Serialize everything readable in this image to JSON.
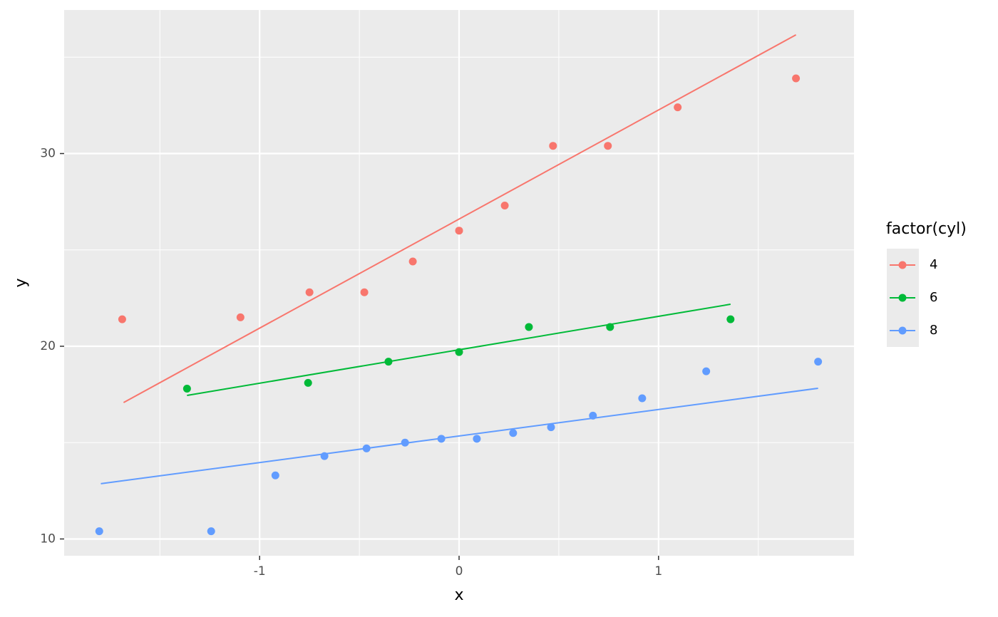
{
  "chart_data": {
    "type": "scatter",
    "x_label": "x",
    "y_label": "y",
    "legend_title": "factor(cyl)",
    "legend_position": "right",
    "xlim": [
      -1.98,
      1.98
    ],
    "ylim": [
      9.13,
      37.45
    ],
    "xticks": [
      -1,
      0,
      1
    ],
    "yticks": [
      10,
      20,
      30
    ],
    "xminor": [
      -1.5,
      -0.5,
      0.5,
      1.5
    ],
    "yminor": [
      15,
      25,
      35
    ],
    "grid": true,
    "series": [
      {
        "name": "4",
        "color": "#F8766D",
        "x": [
          -1.689,
          -1.096,
          -0.75,
          -0.475,
          -0.232,
          0,
          0.229,
          0.471,
          0.746,
          1.096,
          1.689
        ],
        "values": [
          21.4,
          21.5,
          22.8,
          22.8,
          24.4,
          26.0,
          27.3,
          30.4,
          30.4,
          32.4,
          33.9
        ],
        "fit": {
          "x": [
            -1.682,
            1.689
          ],
          "values": [
            17.08,
            36.16
          ]
        }
      },
      {
        "name": "6",
        "color": "#00BA38",
        "x": [
          -1.364,
          -0.757,
          -0.354,
          0,
          0.35,
          0.757,
          1.361
        ],
        "values": [
          17.8,
          18.1,
          19.2,
          19.7,
          21.0,
          21.0,
          21.4
        ],
        "fit": {
          "x": [
            -1.364,
            1.361
          ],
          "values": [
            17.45,
            22.18
          ]
        }
      },
      {
        "name": "8",
        "color": "#619CFF",
        "x": [
          -1.804,
          -1.243,
          -0.921,
          -0.675,
          -0.464,
          -0.271,
          -0.089,
          0.089,
          0.271,
          0.461,
          0.671,
          0.918,
          1.239,
          1.8
        ],
        "values": [
          10.4,
          10.4,
          13.3,
          14.3,
          14.7,
          15.0,
          15.2,
          15.2,
          15.5,
          15.8,
          16.4,
          17.3,
          18.7,
          19.2
        ],
        "fit": {
          "x": [
            -1.796,
            1.8
          ],
          "values": [
            12.87,
            17.82
          ]
        }
      }
    ]
  }
}
